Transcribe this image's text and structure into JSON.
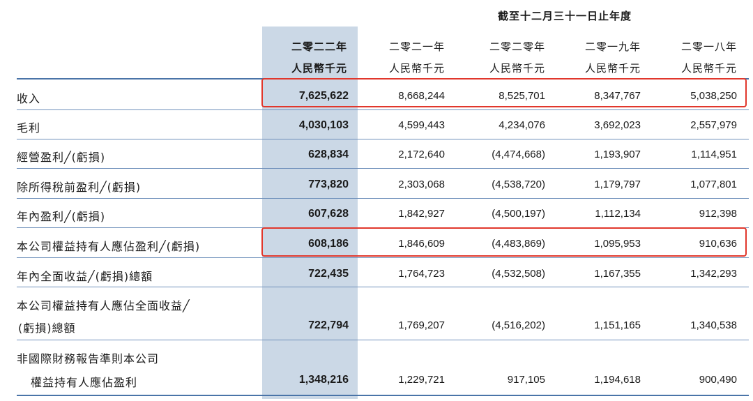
{
  "period_heading": "截至十二月三十一日止年度",
  "columns": [
    {
      "year": "二零二二年",
      "unit": "人民幣千元"
    },
    {
      "year": "二零二一年",
      "unit": "人民幣千元"
    },
    {
      "year": "二零二零年",
      "unit": "人民幣千元"
    },
    {
      "year": "二零一九年",
      "unit": "人民幣千元"
    },
    {
      "year": "二零一八年",
      "unit": "人民幣千元"
    }
  ],
  "rows": [
    {
      "label": "收入",
      "values": [
        "7,625,622",
        "8,668,244",
        "8,525,701",
        "8,347,767",
        "5,038,250"
      ]
    },
    {
      "label": "毛利",
      "values": [
        "4,030,103",
        "4,599,443",
        "4,234,076",
        "3,692,023",
        "2,557,979"
      ]
    },
    {
      "label": "經營盈利╱(虧損)",
      "values": [
        "628,834",
        "2,172,640",
        "(4,474,668)",
        "1,193,907",
        "1,114,951"
      ]
    },
    {
      "label": "除所得稅前盈利╱(虧損)",
      "values": [
        "773,820",
        "2,303,068",
        "(4,538,720)",
        "1,179,797",
        "1,077,801"
      ]
    },
    {
      "label": "年內盈利╱(虧損)",
      "values": [
        "607,628",
        "1,842,927",
        "(4,500,197)",
        "1,112,134",
        "912,398"
      ]
    },
    {
      "label": "本公司權益持有人應佔盈利╱(虧損)",
      "values": [
        "608,186",
        "1,846,609",
        "(4,483,869)",
        "1,095,953",
        "910,636"
      ]
    },
    {
      "label": "年內全面收益╱(虧損)總額",
      "values": [
        "722,435",
        "1,764,723",
        "(4,532,508)",
        "1,167,355",
        "1,342,293"
      ]
    },
    {
      "label_line1": "本公司權益持有人應佔全面收益╱",
      "label_line2": "(虧損)總額",
      "values": [
        "722,794",
        "1,769,207",
        "(4,516,202)",
        "1,151,165",
        "1,340,538"
      ]
    },
    {
      "label_line1": "非國際財務報告準則本公司",
      "label_line2": "權益持有人應佔盈利",
      "values": [
        "1,348,216",
        "1,229,721",
        "917,105",
        "1,194,618",
        "900,490"
      ]
    }
  ],
  "highlight_color": "#cbd8e6",
  "rule_color": "#4a74a8",
  "box_color": "#e1372c"
}
